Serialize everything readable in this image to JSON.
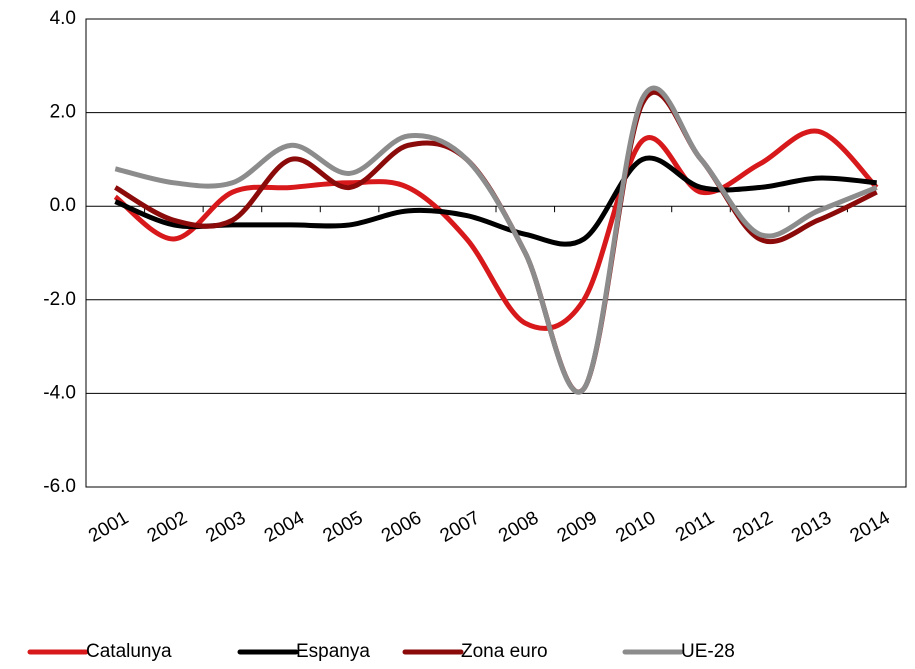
{
  "chart_data": {
    "type": "line",
    "categories": [
      "2001",
      "2002",
      "2003",
      "2004",
      "2005",
      "2006",
      "2007",
      "2008",
      "2009",
      "2010",
      "2011",
      "2012",
      "2013",
      "2014"
    ],
    "series": [
      {
        "name": "Catalunya",
        "color": "#d7191c",
        "values": [
          0.2,
          -0.7,
          0.3,
          0.4,
          0.5,
          0.4,
          -0.7,
          -2.5,
          -2.0,
          1.4,
          0.3,
          0.9,
          1.6,
          0.4
        ]
      },
      {
        "name": "Espanya",
        "color": "#000000",
        "values": [
          0.1,
          -0.4,
          -0.4,
          -0.4,
          -0.4,
          -0.1,
          -0.2,
          -0.6,
          -0.7,
          1.0,
          0.4,
          0.4,
          0.6,
          0.5
        ]
      },
      {
        "name": "Zona euro",
        "color": "#8b0a0a",
        "values": [
          0.4,
          -0.3,
          -0.3,
          1.0,
          0.4,
          1.3,
          1.0,
          -1.0,
          -3.9,
          2.2,
          1.0,
          -0.7,
          -0.3,
          0.3
        ]
      },
      {
        "name": "UE-28",
        "color": "#8c8c8c",
        "values": [
          0.8,
          0.5,
          0.5,
          1.3,
          0.7,
          1.5,
          1.0,
          -1.0,
          -3.9,
          2.3,
          1.0,
          -0.6,
          -0.1,
          0.4
        ]
      }
    ],
    "ylim": [
      -6,
      4
    ],
    "yticks": [
      {
        "value": -6,
        "label": "-6.0"
      },
      {
        "value": -4,
        "label": "-4.0"
      },
      {
        "value": -2,
        "label": "-2.0"
      },
      {
        "value": 0,
        "label": "0.0"
      },
      {
        "value": 2,
        "label": "2.0"
      },
      {
        "value": 4,
        "label": "4.0"
      }
    ],
    "grid": true,
    "legend": "bottom"
  }
}
